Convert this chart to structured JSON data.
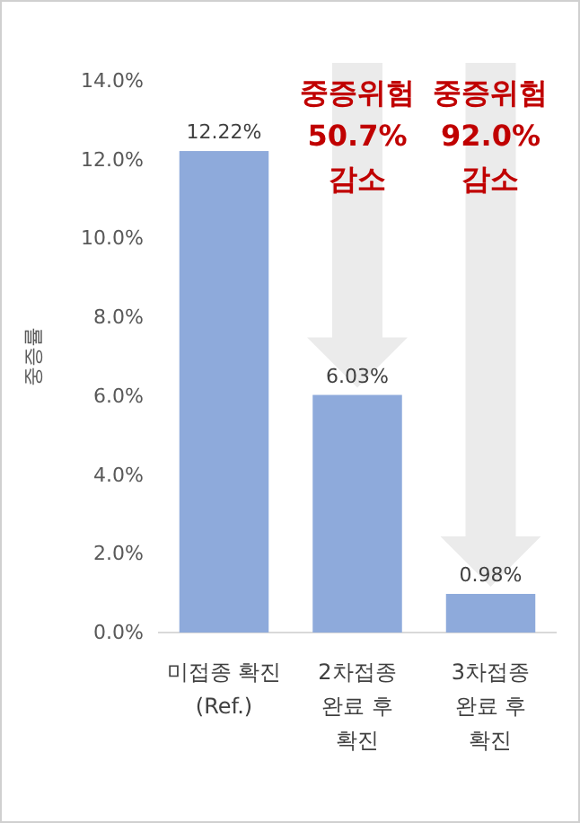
{
  "chart_data": {
    "type": "bar",
    "ylabel": "중증률",
    "categories": [
      "미접종 확진\n(Ref.)",
      "2차접종\n완료 후\n확진",
      "3차접종\n완료 후\n확진"
    ],
    "values": [
      12.22,
      6.03,
      0.98
    ],
    "color": "#8eaadb",
    "value_labels": [
      "12.22%",
      "6.03%",
      "0.98%"
    ],
    "ylim": [
      0,
      14
    ],
    "yticks": [
      {
        "value": 0,
        "label": "0.0%"
      },
      {
        "value": 2,
        "label": "2.0%"
      },
      {
        "value": 4,
        "label": "4.0%"
      },
      {
        "value": 6,
        "label": "6.0%"
      },
      {
        "value": 8,
        "label": "8.0%"
      },
      {
        "value": 10,
        "label": "10.0%"
      },
      {
        "value": 12,
        "label": "12.0%"
      },
      {
        "value": 14,
        "label": "14.0%"
      }
    ],
    "annotations": [
      "중증위험\n50.7%\n감소",
      "중증위험\n92.0%\n감소"
    ],
    "grid": false
  }
}
